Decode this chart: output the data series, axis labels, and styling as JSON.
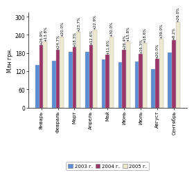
{
  "months": [
    "Январь",
    "Февраль",
    "Март",
    "Апрель",
    "Май",
    "Июнь",
    "Июль",
    "Август",
    "Сентябрь"
  ],
  "values_2003": [
    140,
    155,
    183,
    185,
    158,
    150,
    152,
    128,
    182
  ],
  "values_2004": [
    208,
    192,
    200,
    207,
    176,
    190,
    178,
    162,
    222
  ],
  "values_2005": [
    218,
    235,
    250,
    257,
    235,
    218,
    213,
    228,
    282
  ],
  "pct_2004": [
    "+26.9%",
    "+24.7%",
    "+18.3%",
    "+12.6%",
    "+11.6%",
    "+26.4%",
    "+16.3%",
    "+20.0%",
    "+8.2%"
  ],
  "pct_2005": [
    "+13.8%",
    "+20.0%",
    "+23.7%",
    "+22.9%",
    "+30.0%",
    "+15.8%",
    "+18.6%",
    "+39.0%",
    "+26.0%"
  ],
  "color_2003": "#5b8ed6",
  "color_2004": "#9b3468",
  "color_2005": "#ede8ce",
  "ylabel": "Млн грн.",
  "ylim": [
    0,
    315
  ],
  "yticks": [
    0,
    60,
    120,
    180,
    240,
    300
  ],
  "legend_labels": [
    "2003 г.",
    "2004 г.",
    "2005 г."
  ],
  "annotation_fontsize": 4.0,
  "bar_width": 0.24
}
